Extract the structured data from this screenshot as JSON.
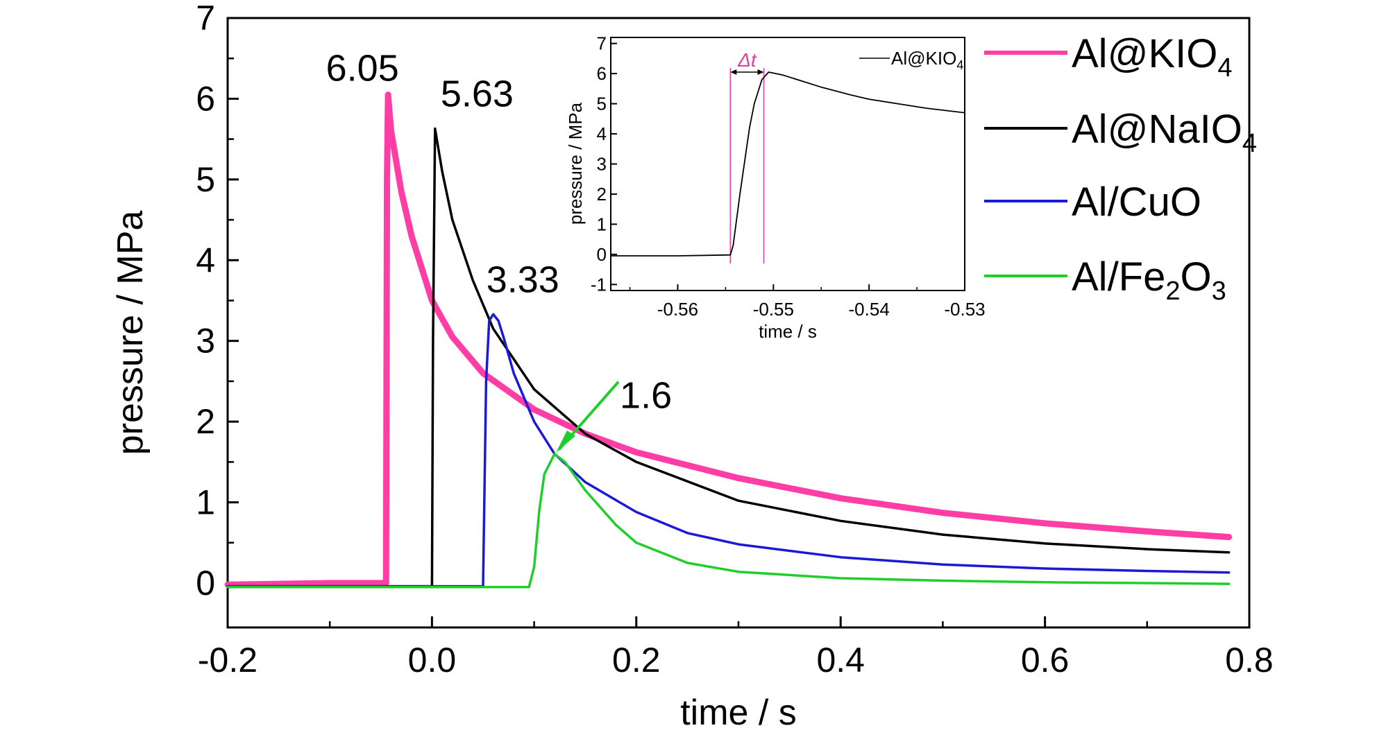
{
  "chart_data": [
    {
      "type": "line",
      "xlabel": "time / s",
      "ylabel": "pressure / MPa",
      "xlim": [
        -0.2,
        0.8
      ],
      "ylim": [
        -0.55,
        7
      ],
      "xticks": [
        -0.2,
        0.0,
        0.2,
        0.4,
        0.6,
        0.8
      ],
      "xtick_labels": [
        "-0.2",
        "0.0",
        "0.2",
        "0.4",
        "0.6",
        "0.8"
      ],
      "yticks": [
        0,
        1,
        2,
        3,
        4,
        5,
        6,
        7
      ],
      "ytick_labels": [
        "0",
        "1",
        "2",
        "3",
        "4",
        "5",
        "6",
        "7"
      ],
      "grid": false,
      "legend_position": "right, outside plot",
      "series": [
        {
          "name": "Al@KIO4",
          "color": "#ff3ea5",
          "x": [
            -0.2,
            -0.1,
            -0.045,
            -0.044,
            -0.043,
            -0.04,
            -0.03,
            -0.02,
            0.0,
            0.02,
            0.05,
            0.1,
            0.15,
            0.2,
            0.3,
            0.4,
            0.5,
            0.6,
            0.7,
            0.78
          ],
          "y": [
            -0.02,
            0.0,
            0.0,
            5.0,
            6.05,
            5.6,
            4.85,
            4.3,
            3.5,
            3.05,
            2.6,
            2.15,
            1.85,
            1.62,
            1.3,
            1.05,
            0.87,
            0.74,
            0.64,
            0.57
          ]
        },
        {
          "name": "Al@NaIO4",
          "color": "#000000",
          "x": [
            -0.2,
            0.0,
            0.001,
            0.003,
            0.01,
            0.02,
            0.04,
            0.06,
            0.1,
            0.15,
            0.2,
            0.3,
            0.4,
            0.5,
            0.6,
            0.7,
            0.78
          ],
          "y": [
            -0.04,
            -0.04,
            3.0,
            5.63,
            5.1,
            4.5,
            3.75,
            3.15,
            2.4,
            1.85,
            1.5,
            1.02,
            0.77,
            0.6,
            0.49,
            0.42,
            0.38
          ]
        },
        {
          "name": "Al/CuO",
          "color": "#1a1ad6",
          "x": [
            -0.2,
            0.05,
            0.053,
            0.056,
            0.06,
            0.065,
            0.07,
            0.08,
            0.1,
            0.12,
            0.15,
            0.2,
            0.25,
            0.3,
            0.4,
            0.5,
            0.6,
            0.7,
            0.78
          ],
          "y": [
            -0.04,
            -0.04,
            2.5,
            3.25,
            3.33,
            3.25,
            3.05,
            2.6,
            2.0,
            1.6,
            1.25,
            0.88,
            0.62,
            0.48,
            0.32,
            0.23,
            0.18,
            0.15,
            0.13
          ]
        },
        {
          "name": "Al/Fe2O3",
          "color": "#1fce2a",
          "x": [
            -0.2,
            0.095,
            0.1,
            0.105,
            0.11,
            0.12,
            0.13,
            0.15,
            0.18,
            0.2,
            0.25,
            0.3,
            0.4,
            0.5,
            0.6,
            0.7,
            0.78
          ],
          "y": [
            -0.05,
            -0.05,
            0.2,
            0.9,
            1.35,
            1.6,
            1.5,
            1.15,
            0.72,
            0.5,
            0.25,
            0.14,
            0.06,
            0.03,
            0.01,
            0.0,
            -0.01
          ]
        }
      ],
      "legend_entries": [
        {
          "main": "Al@KIO",
          "sub": "4",
          "color": "#ff3ea5"
        },
        {
          "main": "Al@NaIO",
          "sub": "4",
          "color": "#000000"
        },
        {
          "main": "Al/CuO",
          "sub": "",
          "color": "#1a1ad6"
        },
        {
          "main": "Al/Fe",
          "sub": "2",
          "main2": "O",
          "sub2": "3",
          "color": "#1fce2a"
        }
      ],
      "annotations": [
        {
          "text": "6.05",
          "x": -0.044,
          "y": 6.05,
          "series": "Al@KIO4"
        },
        {
          "text": "5.63",
          "x": 0.003,
          "y": 5.63,
          "series": "Al@NaIO4"
        },
        {
          "text": "3.33",
          "x": 0.06,
          "y": 3.33,
          "series": "Al/CuO"
        },
        {
          "text": "1.6",
          "x": 0.12,
          "y": 1.6,
          "series": "Al/Fe2O3"
        }
      ]
    },
    {
      "type": "line",
      "role": "inset",
      "xlabel": "time / s",
      "ylabel": "pressure / MPa",
      "xlim": [
        -0.567,
        -0.53
      ],
      "ylim": [
        -1.2,
        7.2
      ],
      "xticks": [
        -0.56,
        -0.55,
        -0.54,
        -0.53
      ],
      "xtick_labels": [
        "-0.56",
        "-0.55",
        "-0.54",
        "-0.53"
      ],
      "yticks": [
        -1,
        0,
        1,
        2,
        3,
        4,
        5,
        6,
        7
      ],
      "ytick_labels": [
        "-1",
        "0",
        "1",
        "2",
        "3",
        "4",
        "5",
        "6",
        "7"
      ],
      "grid": false,
      "legend_position": "top-right",
      "series": [
        {
          "name": "Al@KIO4",
          "color": "#000000",
          "x": [
            -0.567,
            -0.56,
            -0.5545,
            -0.5542,
            -0.5535,
            -0.5525,
            -0.552,
            -0.5512,
            -0.5505,
            -0.549,
            -0.547,
            -0.545,
            -0.542,
            -0.54,
            -0.537,
            -0.534,
            -0.53
          ],
          "y": [
            -0.05,
            -0.05,
            -0.02,
            0.3,
            2.0,
            4.2,
            5.0,
            5.8,
            6.05,
            5.95,
            5.75,
            5.55,
            5.3,
            5.15,
            5.0,
            4.85,
            4.7
          ]
        }
      ],
      "legend_entries": [
        {
          "main": "Al@KIO",
          "sub": "4",
          "color": "#000000"
        }
      ],
      "markers": {
        "color": "#e0409a",
        "vlines_x": [
          -0.5545,
          -0.551
        ],
        "label": "Δt"
      }
    }
  ]
}
